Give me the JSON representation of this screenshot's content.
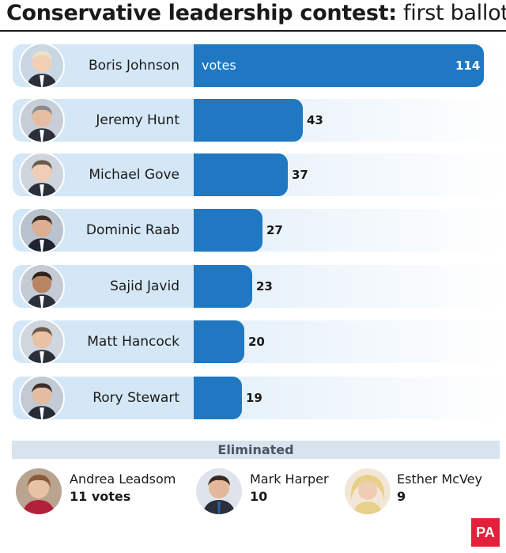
{
  "title_bold": "Conservative leadership contest:",
  "title_rest": " first ballot",
  "colors": {
    "bar": "#1f78c1",
    "pill": "#d4e7f6",
    "logo": "#e4203a"
  },
  "chart_data": {
    "type": "bar",
    "orientation": "horizontal",
    "title": "Conservative leadership contest: first ballot",
    "unit_label": "votes",
    "categories": [
      "Boris Johnson",
      "Jeremy Hunt",
      "Michael Gove",
      "Dominic Raab",
      "Sajid Javid",
      "Matt Hancock",
      "Rory Stewart"
    ],
    "values": [
      114,
      43,
      37,
      27,
      23,
      20,
      19
    ],
    "xlim": [
      0,
      114
    ]
  },
  "eliminated": {
    "heading": "Eliminated",
    "candidates": [
      {
        "name": "Andrea Leadsom",
        "votes": "11 votes"
      },
      {
        "name": "Mark Harper",
        "votes": "10"
      },
      {
        "name": "Esther McVey",
        "votes": "9"
      }
    ]
  },
  "logo_text": "PA"
}
